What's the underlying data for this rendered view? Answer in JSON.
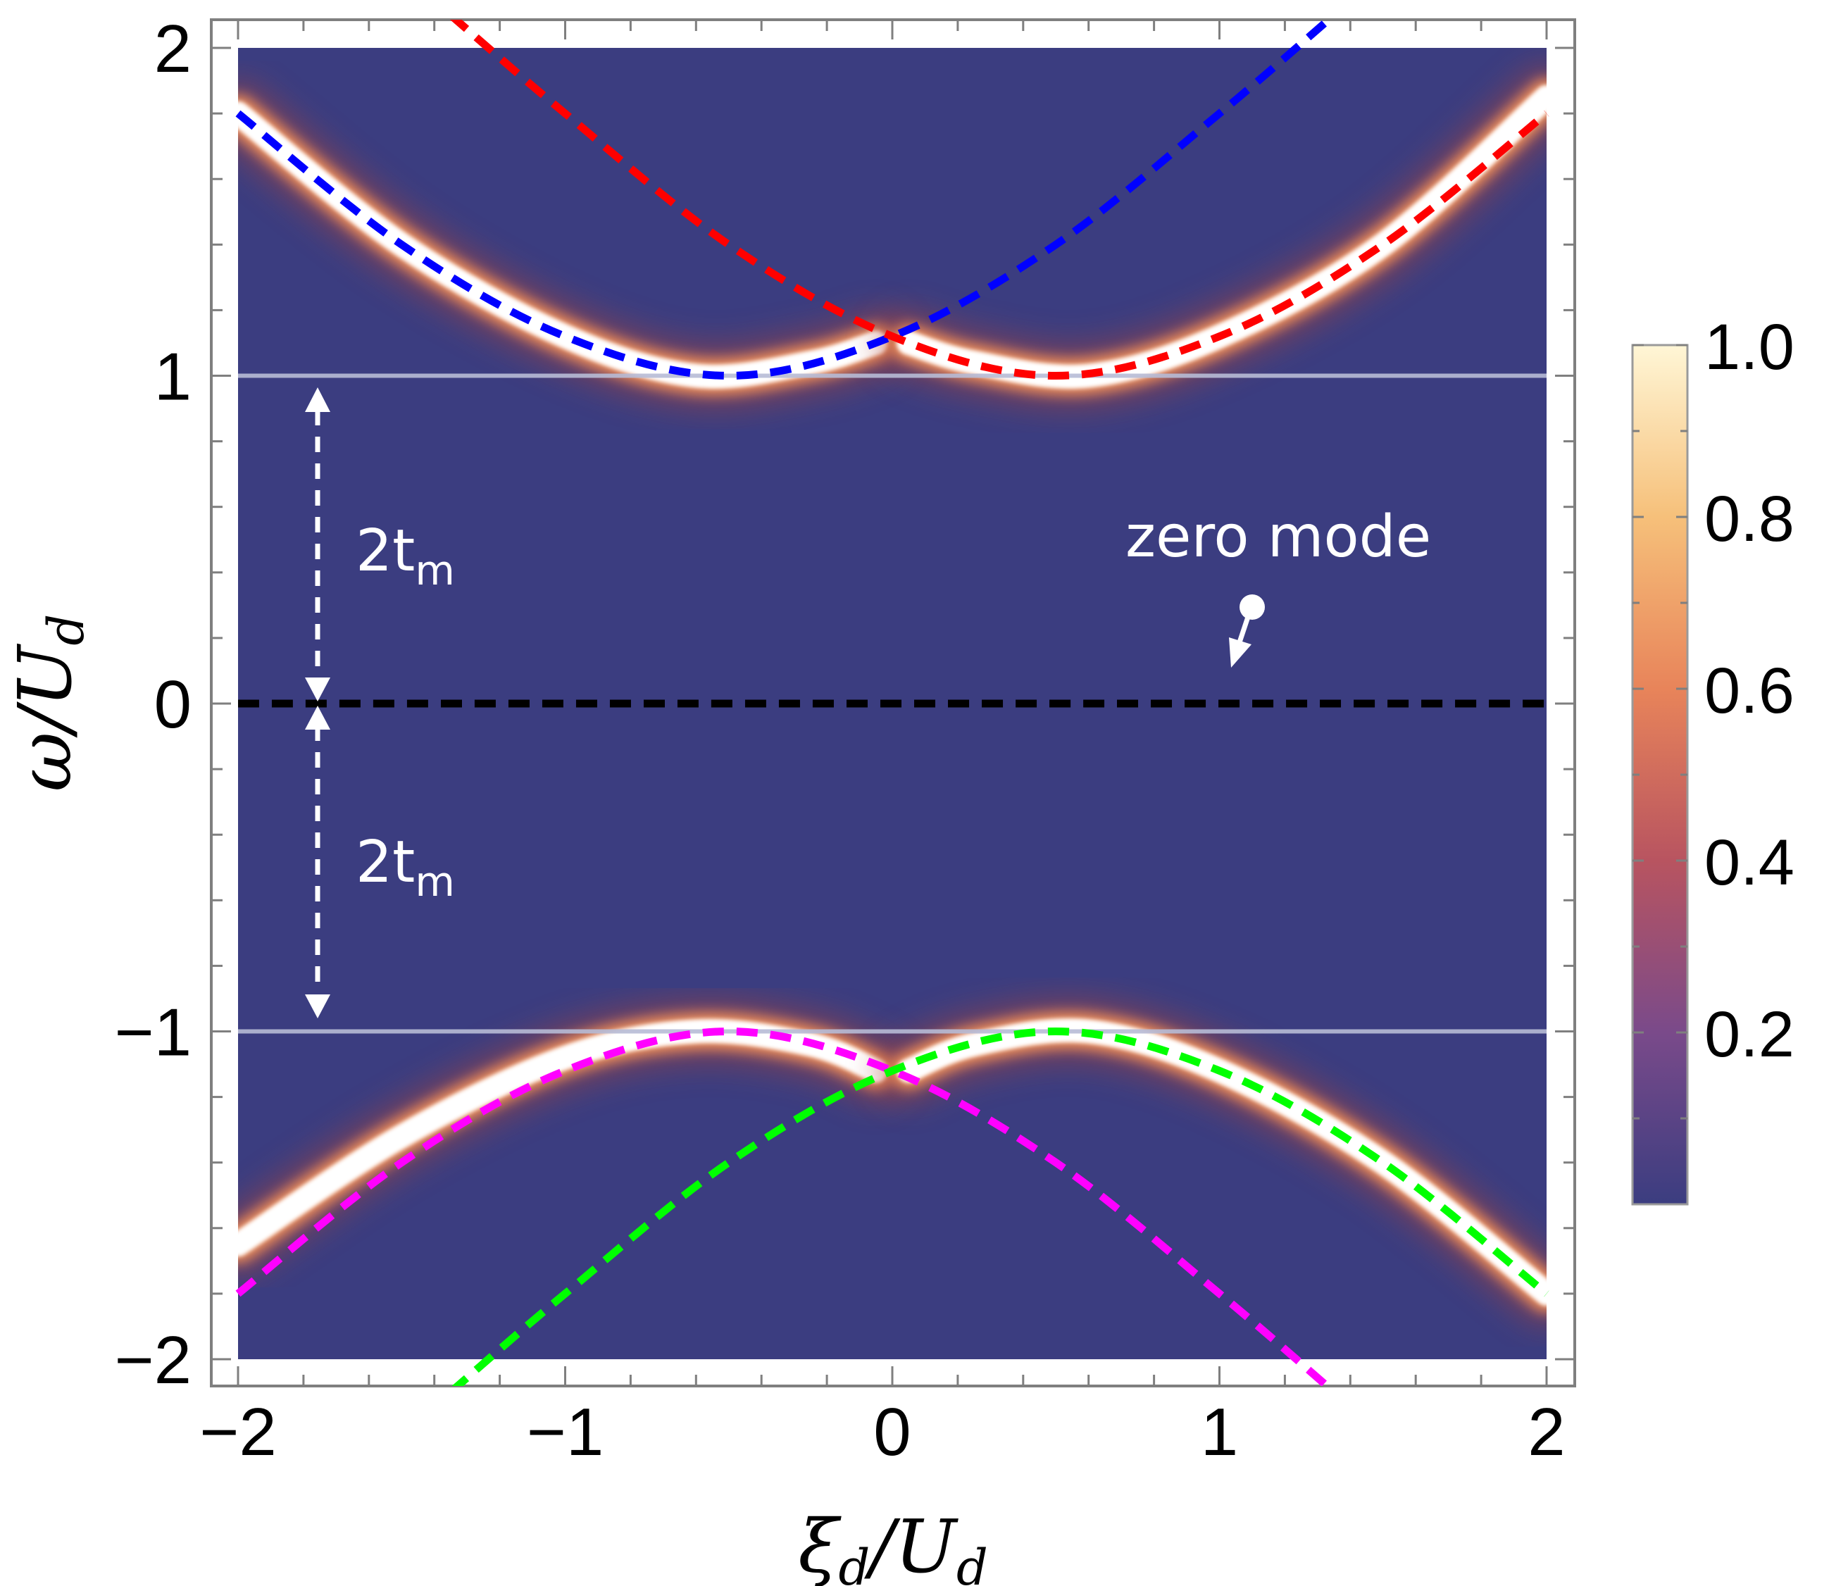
{
  "chart_data": {
    "type": "heatmap",
    "title": "",
    "xlabel": {
      "main": "ξ",
      "sub1": "d",
      "slash": "/",
      "main2": "U",
      "sub2": "d"
    },
    "ylabel": {
      "main": "ω",
      "slash": "/",
      "main2": "U",
      "sub2": "d"
    },
    "xlim": [
      -2,
      2
    ],
    "ylim": [
      -2,
      2
    ],
    "x_ticks": [
      -2,
      -1,
      0,
      1,
      2
    ],
    "y_ticks": [
      -2,
      -1,
      0,
      1,
      2
    ],
    "x_tick_labels": [
      "−2",
      "−1",
      "0",
      "1",
      "2"
    ],
    "y_tick_labels": [
      "−2",
      "−1",
      "0",
      "1",
      "2"
    ],
    "colorbar": {
      "range": [
        0,
        1.0
      ],
      "tick_values": [
        0.2,
        0.4,
        0.6,
        0.8,
        1.0
      ],
      "tick_labels": [
        "0.2",
        "0.4",
        "0.6",
        "0.8",
        "1.0"
      ],
      "colors": [
        "#3b3d80",
        "#7a4a8a",
        "#b85460",
        "#e8845a",
        "#f6c07a",
        "#fff6d6"
      ]
    },
    "background_color": "#3b3d80",
    "dashed_series": [
      {
        "color": "#0000ff",
        "points": [
          [
            -2,
            1.8
          ],
          [
            -1.5,
            1.4
          ],
          [
            -1,
            1.12
          ],
          [
            -0.5,
            1.0
          ],
          [
            0,
            1.12
          ],
          [
            0.5,
            1.4
          ],
          [
            1,
            1.8
          ],
          [
            1.35,
            2.1
          ]
        ]
      },
      {
        "color": "#ff0000",
        "points": [
          [
            -1.35,
            2.1
          ],
          [
            -1,
            1.8
          ],
          [
            -0.5,
            1.4
          ],
          [
            0,
            1.12
          ],
          [
            0.5,
            1.0
          ],
          [
            1,
            1.12
          ],
          [
            1.5,
            1.4
          ],
          [
            2,
            1.8
          ]
        ]
      },
      {
        "color": "#ff00ff",
        "points": [
          [
            -2,
            -1.8
          ],
          [
            -1.5,
            -1.4
          ],
          [
            -1,
            -1.12
          ],
          [
            -0.5,
            -1.0
          ],
          [
            0,
            -1.12
          ],
          [
            0.5,
            -1.4
          ],
          [
            1,
            -1.8
          ],
          [
            1.35,
            -2.1
          ]
        ]
      },
      {
        "color": "#00ff00",
        "points": [
          [
            -1.35,
            -2.1
          ],
          [
            -1,
            -1.8
          ],
          [
            -0.5,
            -1.4
          ],
          [
            0,
            -1.12
          ],
          [
            0.5,
            -1.0
          ],
          [
            1,
            -1.12
          ],
          [
            1.5,
            -1.4
          ],
          [
            2,
            -1.8
          ]
        ]
      },
      {
        "color": "#000000",
        "points": [
          [
            -2,
            0
          ],
          [
            2,
            0
          ]
        ]
      }
    ],
    "bright_bands": [
      {
        "points": [
          [
            -2,
            1.8
          ],
          [
            -1.5,
            1.4
          ],
          [
            -1,
            1.12
          ],
          [
            -0.6,
            1.0
          ],
          [
            -0.25,
            1.04
          ],
          [
            -0.05,
            1.1
          ]
        ]
      },
      {
        "points": [
          [
            0.05,
            1.1
          ],
          [
            0.25,
            1.04
          ],
          [
            0.6,
            1.0
          ],
          [
            1,
            1.12
          ],
          [
            1.5,
            1.4
          ],
          [
            2,
            1.85
          ]
        ]
      },
      {
        "points": [
          [
            -2,
            -1.65
          ],
          [
            -1.5,
            -1.32
          ],
          [
            -1,
            -1.08
          ],
          [
            -0.6,
            -1.0
          ],
          [
            -0.25,
            -1.04
          ],
          [
            -0.05,
            -1.12
          ]
        ]
      },
      {
        "points": [
          [
            0.05,
            -1.12
          ],
          [
            0.25,
            -1.04
          ],
          [
            0.6,
            -1.0
          ],
          [
            1,
            -1.12
          ],
          [
            1.5,
            -1.4
          ],
          [
            2,
            -1.8
          ]
        ]
      },
      {
        "points": [
          [
            -2,
            0
          ],
          [
            2,
            0
          ]
        ]
      }
    ],
    "reference_lines": [
      {
        "y": 1,
        "color": "#b8bcd6"
      },
      {
        "y": -1,
        "color": "#b8bcd6"
      }
    ],
    "annotations": {
      "gap_upper": {
        "main": "2t",
        "sub": "m"
      },
      "gap_lower": {
        "main": "2t",
        "sub": "m"
      },
      "zero_mode": "zero mode",
      "arrow_x": -1.75,
      "zero_mode_pointer": {
        "from": [
          1.1,
          0.29
        ],
        "to": [
          1.03,
          0.09
        ]
      }
    }
  }
}
